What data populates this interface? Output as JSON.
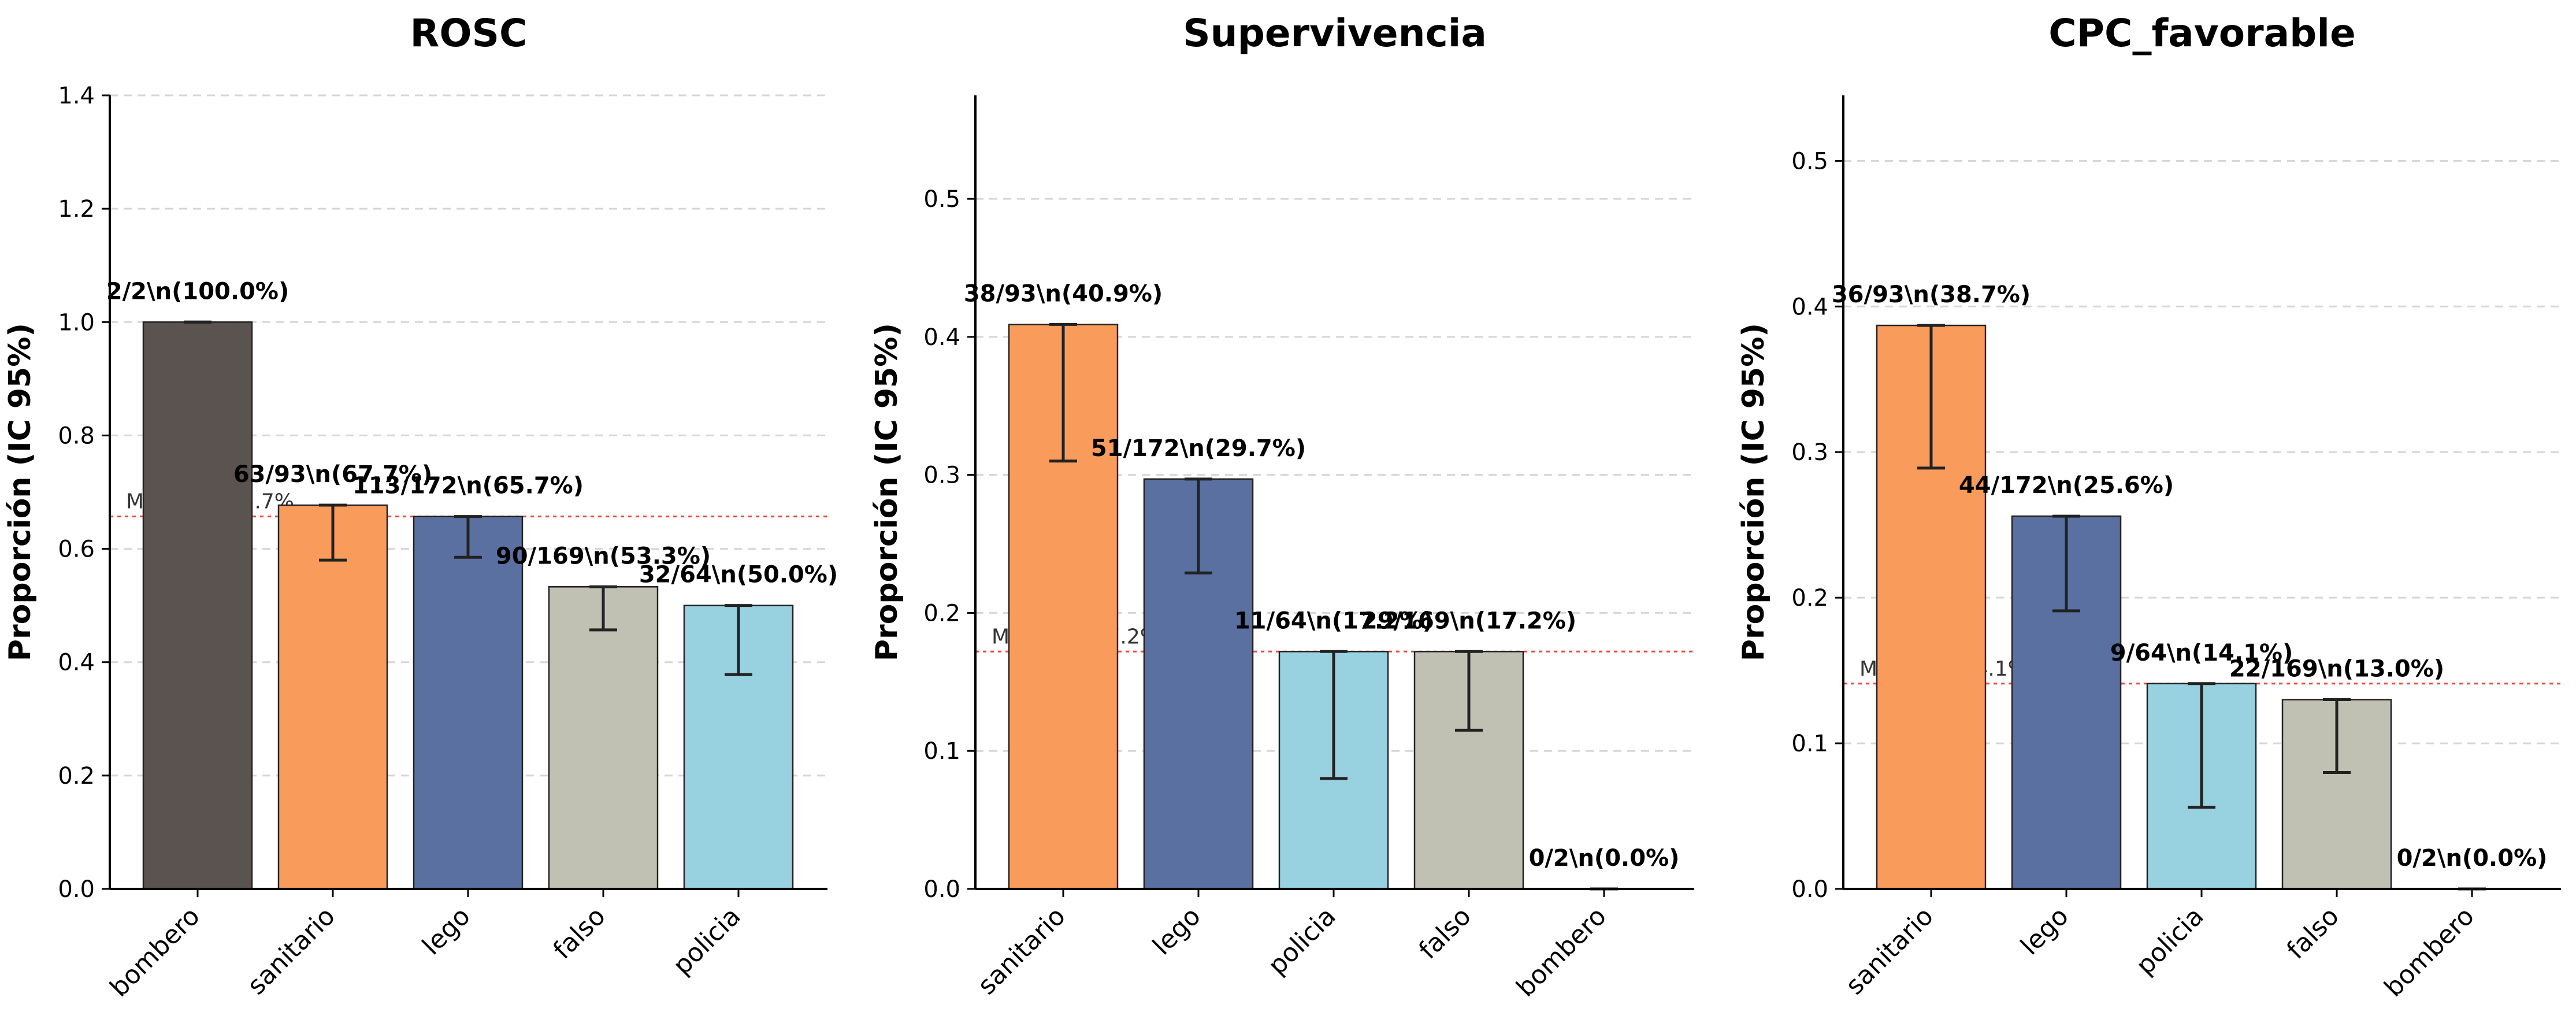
{
  "figure": {
    "y_axis_label": "Proporción (IC 95%)",
    "median_color": "#e8473f",
    "grid": true,
    "category_colors": {
      "bombero": "#5a5350",
      "sanitario": "#f99b5a",
      "lego": "#5a70a0",
      "falso": "#c0c1b3",
      "policia": "#98d1e0"
    }
  },
  "chart_data": [
    {
      "type": "bar",
      "title": "ROSC",
      "ylabel": "Proporción (IC 95%)",
      "ylim": [
        0,
        1.4
      ],
      "yticks": [
        0.0,
        0.2,
        0.4,
        0.6,
        0.8,
        1.0,
        1.2,
        1.4
      ],
      "categories": [
        "bombero",
        "sanitario",
        "lego",
        "falso",
        "policia"
      ],
      "values": [
        1.0,
        0.677,
        0.657,
        0.533,
        0.5
      ],
      "ci_low": [
        1.0,
        0.58,
        0.585,
        0.457,
        0.378
      ],
      "ci_high": [
        1.0,
        0.677,
        0.657,
        0.533,
        0.5
      ],
      "labels": [
        "2/2\\n(100.0%)",
        "63/93\\n(67.7%)",
        "113/172\\n(65.7%)",
        "90/169\\n(53.3%)",
        "32/64\\n(50.0%)"
      ],
      "median": 0.657,
      "median_label": "Mediana: 65.7%"
    },
    {
      "type": "bar",
      "title": "Supervivencia",
      "ylabel": "Proporción (IC 95%)",
      "ylim": [
        0,
        0.575
      ],
      "yticks": [
        0.0,
        0.1,
        0.2,
        0.3,
        0.4,
        0.5
      ],
      "categories": [
        "sanitario",
        "lego",
        "policia",
        "falso",
        "bombero"
      ],
      "values": [
        0.409,
        0.297,
        0.172,
        0.172,
        0.0
      ],
      "ci_low": [
        0.31,
        0.229,
        0.08,
        0.115,
        0.0
      ],
      "ci_high": [
        0.409,
        0.297,
        0.172,
        0.172,
        0.0
      ],
      "labels": [
        "38/93\\n(40.9%)",
        "51/172\\n(29.7%)",
        "11/64\\n(17.2%)",
        "29/169\\n(17.2%)",
        "0/2\\n(0.0%)"
      ],
      "median": 0.172,
      "median_label": "Mediana: 17.2%"
    },
    {
      "type": "bar",
      "title": "CPC_favorable",
      "ylabel": "Proporción (IC 95%)",
      "ylim": [
        0,
        0.545
      ],
      "yticks": [
        0.0,
        0.1,
        0.2,
        0.3,
        0.4,
        0.5
      ],
      "categories": [
        "sanitario",
        "lego",
        "policia",
        "falso",
        "bombero"
      ],
      "values": [
        0.387,
        0.256,
        0.141,
        0.13,
        0.0
      ],
      "ci_low": [
        0.289,
        0.191,
        0.056,
        0.08,
        0.0
      ],
      "ci_high": [
        0.387,
        0.256,
        0.141,
        0.13,
        0.0
      ],
      "labels": [
        "36/93\\n(38.7%)",
        "44/172\\n(25.6%)",
        "9/64\\n(14.1%)",
        "22/169\\n(13.0%)",
        "0/2\\n(0.0%)"
      ],
      "median": 0.141,
      "median_label": "Mediana: 14.1%"
    }
  ]
}
